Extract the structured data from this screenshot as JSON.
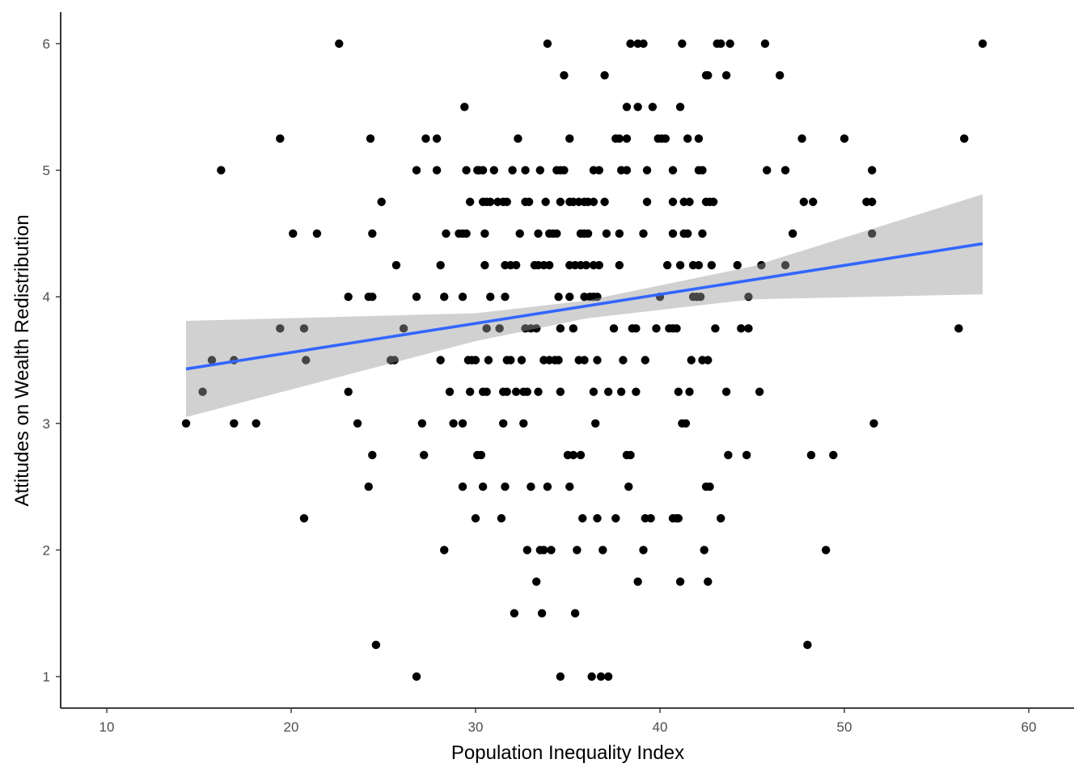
{
  "chart_data": {
    "type": "scatter",
    "title": "",
    "xlabel": "Population Inequality Index",
    "ylabel": "Attitudes on Wealth Redistribution",
    "xlim": [
      7.5,
      62.5
    ],
    "ylim": [
      0.78,
      6.25
    ],
    "x_ticks": [
      10,
      20,
      30,
      40,
      50,
      60
    ],
    "y_ticks": [
      1,
      2,
      3,
      4,
      5,
      6
    ],
    "x_tick_labels": [
      "10",
      "20",
      "30",
      "40",
      "50",
      "60"
    ],
    "y_tick_labels": [
      "1",
      "2",
      "3",
      "4",
      "5",
      "6"
    ],
    "grid": false,
    "point_color": "#000000",
    "points_by_y": [
      {
        "y": 6,
        "x": [
          22.6,
          33.9,
          38.4,
          38.8,
          39.1,
          41.2,
          43.1,
          43.3,
          43.8,
          45.7,
          57.5
        ]
      },
      {
        "y": 5.75,
        "x": [
          34.8,
          37.0,
          42.5,
          42.6,
          43.6,
          46.5
        ]
      },
      {
        "y": 5.5,
        "x": [
          29.4,
          38.2,
          38.8,
          39.6,
          41.1
        ]
      },
      {
        "y": 5.25,
        "x": [
          19.4,
          24.3,
          27.3,
          27.9,
          32.3,
          35.1,
          37.6,
          37.8,
          38.2,
          39.9,
          40.1,
          40.3,
          41.5,
          42.1,
          47.7,
          50.0,
          56.5
        ]
      },
      {
        "y": 5,
        "x": [
          16.2,
          26.8,
          27.9,
          29.5,
          30.1,
          30.2,
          30.4,
          31.0,
          32.0,
          32.7,
          33.5,
          34.4,
          34.6,
          34.8,
          36.4,
          36.7,
          37.9,
          38.2,
          39.3,
          40.7,
          42.1,
          42.3,
          45.8,
          46.8,
          51.5
        ]
      },
      {
        "y": 4.75,
        "x": [
          24.9,
          29.7,
          30.4,
          30.6,
          30.8,
          31.2,
          31.5,
          31.7,
          32.7,
          32.9,
          33.8,
          34.6,
          35.1,
          35.3,
          35.6,
          35.9,
          36.1,
          36.4,
          37.0,
          39.3,
          40.7,
          41.3,
          41.6,
          42.5,
          42.7,
          42.9,
          47.8,
          48.3,
          51.2,
          51.5
        ]
      },
      {
        "y": 4.5,
        "x": [
          20.1,
          21.4,
          24.4,
          28.4,
          29.1,
          29.3,
          29.5,
          30.5,
          32.4,
          33.4,
          34.0,
          34.2,
          34.4,
          35.7,
          35.9,
          36.1,
          37.1,
          37.8,
          39.1,
          40.7,
          41.3,
          41.5,
          42.3,
          47.2,
          51.5
        ]
      },
      {
        "y": 4.25,
        "x": [
          25.7,
          28.1,
          30.5,
          31.6,
          31.9,
          32.2,
          33.2,
          33.4,
          33.7,
          34.0,
          35.1,
          35.4,
          35.7,
          36.0,
          36.4,
          36.7,
          37.8,
          40.4,
          41.1,
          41.8,
          42.1,
          42.8,
          44.2,
          45.5,
          46.8
        ]
      },
      {
        "y": 4,
        "x": [
          23.1,
          24.2,
          24.4,
          26.8,
          28.3,
          29.3,
          30.8,
          31.6,
          34.5,
          35.1,
          35.9,
          36.2,
          36.4,
          36.6,
          40.0,
          41.8,
          42.0,
          42.2,
          44.8
        ]
      },
      {
        "y": 3.75,
        "x": [
          19.4,
          20.7,
          26.1,
          30.6,
          31.3,
          32.7,
          33.0,
          33.3,
          34.6,
          35.3,
          37.5,
          38.5,
          38.7,
          39.8,
          40.5,
          40.7,
          40.9,
          43.0,
          44.4,
          44.8,
          56.2
        ]
      },
      {
        "y": 3.5,
        "x": [
          15.7,
          16.9,
          20.8,
          25.4,
          25.6,
          28.1,
          29.6,
          29.8,
          30.0,
          30.7,
          31.7,
          31.9,
          32.5,
          33.7,
          34.0,
          34.3,
          34.5,
          35.6,
          35.9,
          36.6,
          38.0,
          39.2,
          41.7,
          42.3,
          42.6
        ]
      },
      {
        "y": 3.25,
        "x": [
          15.2,
          23.1,
          28.6,
          29.7,
          30.4,
          30.6,
          31.5,
          31.7,
          32.2,
          32.6,
          32.8,
          33.4,
          34.6,
          36.4,
          37.2,
          37.9,
          38.7,
          41.0,
          41.6,
          43.6,
          45.4
        ]
      },
      {
        "y": 3,
        "x": [
          14.3,
          16.9,
          18.1,
          23.6,
          27.1,
          28.8,
          29.3,
          31.5,
          32.6,
          36.5,
          41.2,
          41.4,
          51.6
        ]
      },
      {
        "y": 2.75,
        "x": [
          24.4,
          27.2,
          30.1,
          30.3,
          35.0,
          35.3,
          35.7,
          38.2,
          38.4,
          43.7,
          44.7,
          48.2,
          49.4
        ]
      },
      {
        "y": 2.5,
        "x": [
          24.2,
          29.3,
          30.4,
          31.6,
          33.0,
          33.9,
          35.1,
          38.3,
          42.5,
          42.7
        ]
      },
      {
        "y": 2.25,
        "x": [
          20.7,
          30.0,
          31.4,
          35.8,
          36.6,
          37.6,
          39.2,
          39.5,
          40.7,
          40.9,
          41.0,
          43.3
        ]
      },
      {
        "y": 2,
        "x": [
          28.3,
          32.8,
          33.5,
          33.7,
          34.1,
          35.5,
          36.9,
          39.1,
          42.4,
          49.0
        ]
      },
      {
        "y": 1.75,
        "x": [
          33.3,
          38.8,
          41.1,
          42.6
        ]
      },
      {
        "y": 1.5,
        "x": [
          32.1,
          33.6,
          35.4
        ]
      },
      {
        "y": 1.25,
        "x": [
          24.6,
          48.0
        ]
      },
      {
        "y": 1,
        "x": [
          26.8,
          34.6,
          36.3,
          36.8,
          37.2
        ]
      }
    ],
    "fit_line": {
      "method": "linear",
      "color": "#3366FF",
      "x": [
        14.3,
        57.5
      ],
      "y": [
        3.43,
        4.42
      ],
      "ci_band": {
        "x": [
          14.3,
          30,
          36,
          45,
          57.5
        ],
        "lower": [
          3.05,
          3.65,
          3.83,
          3.98,
          4.02
        ],
        "upper": [
          3.81,
          3.87,
          3.97,
          4.24,
          4.81
        ]
      },
      "ci_color": "#999999"
    }
  }
}
